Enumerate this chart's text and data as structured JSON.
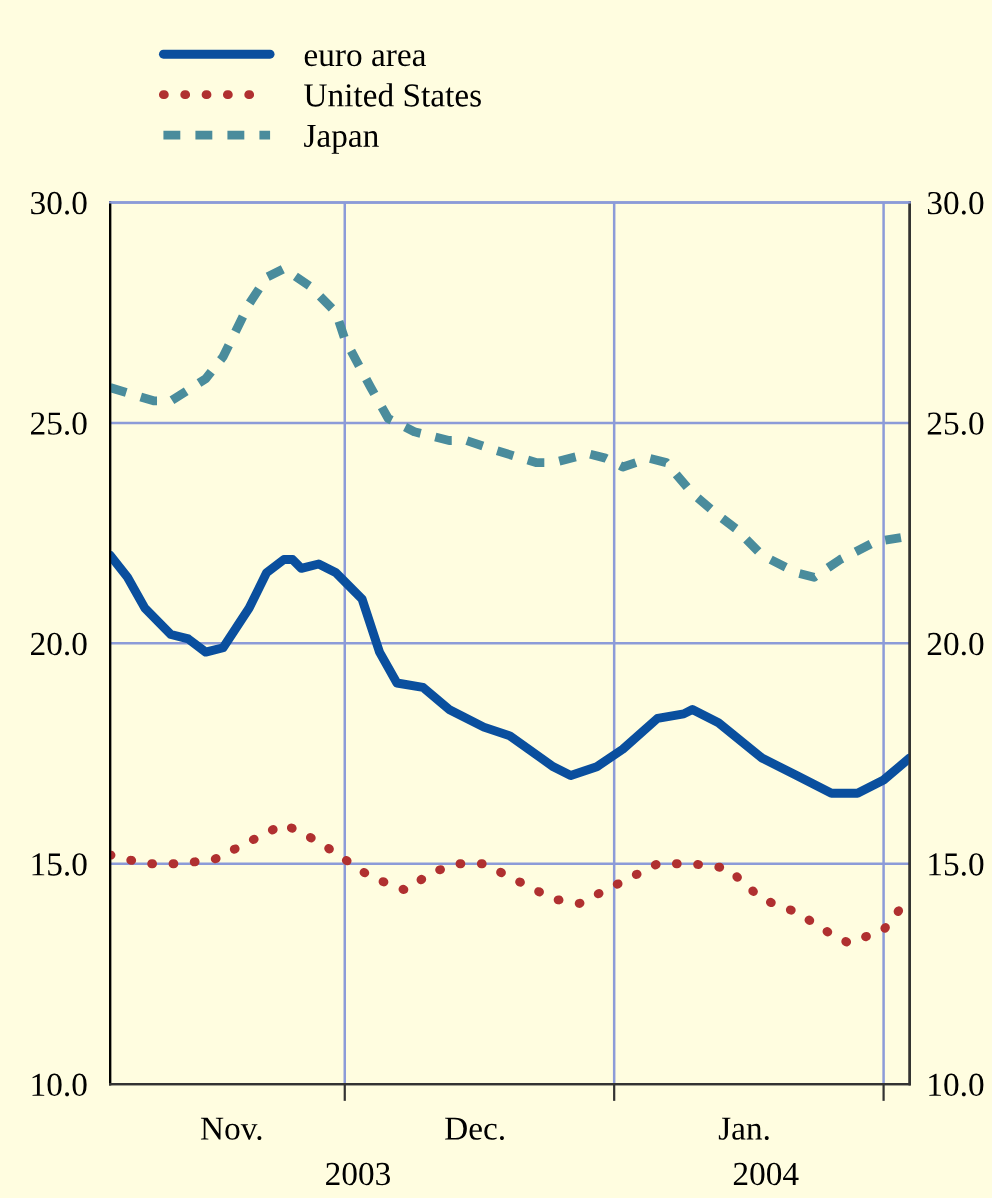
{
  "chart_data": {
    "type": "line",
    "series": [
      {
        "name": "euro area",
        "color": "#0a4f9e",
        "line_style": "solid",
        "x": [
          "2003-11-04",
          "2003-11-06",
          "2003-11-08",
          "2003-11-11",
          "2003-11-13",
          "2003-11-15",
          "2003-11-17",
          "2003-11-20",
          "2003-11-22",
          "2003-11-24",
          "2003-11-25",
          "2003-11-26",
          "2003-11-28",
          "2003-11-30",
          "2003-12-03",
          "2003-12-05",
          "2003-12-07",
          "2003-12-10",
          "2003-12-13",
          "2003-12-17",
          "2003-12-20",
          "2003-12-25",
          "2003-12-27",
          "2003-12-30",
          "2004-01-02",
          "2004-01-06",
          "2004-01-09",
          "2004-01-10",
          "2004-01-13",
          "2004-01-18",
          "2004-01-22",
          "2004-01-26",
          "2004-01-29",
          "2004-02-01",
          "2004-02-04"
        ],
        "values": [
          22.0,
          21.5,
          20.8,
          20.2,
          20.1,
          19.8,
          19.9,
          20.8,
          21.6,
          21.9,
          21.9,
          21.7,
          21.8,
          21.6,
          21.0,
          19.8,
          19.1,
          19.0,
          18.5,
          18.1,
          17.9,
          17.2,
          17.0,
          17.2,
          17.6,
          18.3,
          18.4,
          18.5,
          18.2,
          17.4,
          17.0,
          16.6,
          16.6,
          16.9,
          17.4
        ]
      },
      {
        "name": "United States",
        "color": "#b03030",
        "line_style": "dotted",
        "x": [
          "2003-11-04",
          "2003-11-08",
          "2003-11-12",
          "2003-11-16",
          "2003-11-21",
          "2003-11-24",
          "2003-11-28",
          "2003-12-01",
          "2003-12-04",
          "2003-12-08",
          "2003-12-11",
          "2003-12-14",
          "2003-12-17",
          "2003-12-20",
          "2003-12-25",
          "2003-12-28",
          "2004-01-01",
          "2004-01-06",
          "2004-01-10",
          "2004-01-14",
          "2004-01-18",
          "2004-01-22",
          "2004-01-26",
          "2004-01-28",
          "2004-02-01",
          "2004-02-03"
        ],
        "values": [
          15.2,
          15.0,
          15.0,
          15.1,
          15.6,
          15.9,
          15.5,
          15.1,
          14.7,
          14.4,
          14.8,
          15.0,
          15.0,
          14.7,
          14.2,
          14.1,
          14.5,
          15.0,
          15.0,
          14.9,
          14.2,
          13.9,
          13.4,
          13.2,
          13.5,
          14.0
        ]
      },
      {
        "name": "Japan",
        "color": "#4a8c9c",
        "line_style": "dashed",
        "x": [
          "2003-11-04",
          "2003-11-09",
          "2003-11-11",
          "2003-11-15",
          "2003-11-17",
          "2003-11-20",
          "2003-11-22",
          "2003-11-24",
          "2003-11-27",
          "2003-11-30",
          "2003-12-01",
          "2003-12-04",
          "2003-12-06",
          "2003-12-09",
          "2003-12-13",
          "2003-12-15",
          "2003-12-18",
          "2003-12-23",
          "2003-12-25",
          "2003-12-29",
          "2003-12-31",
          "2004-01-02",
          "2004-01-05",
          "2004-01-07",
          "2004-01-10",
          "2004-01-13",
          "2004-01-15",
          "2004-01-18",
          "2004-01-22",
          "2004-01-24",
          "2004-01-27",
          "2004-01-31",
          "2004-02-03"
        ],
        "values": [
          25.8,
          25.5,
          25.5,
          26.0,
          26.5,
          27.7,
          28.3,
          28.5,
          28.1,
          27.5,
          26.9,
          25.8,
          25.1,
          24.8,
          24.6,
          24.6,
          24.4,
          24.1,
          24.1,
          24.3,
          24.2,
          24.0,
          24.2,
          24.1,
          23.4,
          22.9,
          22.6,
          22.0,
          21.6,
          21.5,
          21.9,
          22.3,
          22.4
        ]
      }
    ],
    "xlim": [
      "2003-11-04",
      "2004-02-04"
    ],
    "xticks": [
      {
        "value": "2003-12-01",
        "label": null
      },
      {
        "value": "2004-01-01",
        "label": null
      },
      {
        "value": "2004-02-01",
        "label": null
      },
      {
        "value": "2003-11-18",
        "label": "Nov."
      },
      {
        "value": "2003-12-16",
        "label": "Dec."
      },
      {
        "value": "2004-01-16",
        "label": "Jan."
      }
    ],
    "ylim": [
      10,
      30
    ],
    "yticks": [
      {
        "value": 10,
        "label": "10.0"
      },
      {
        "value": 15,
        "label": "15.0"
      },
      {
        "value": 20,
        "label": "20.0"
      },
      {
        "value": 25,
        "label": "25.0"
      },
      {
        "value": 30,
        "label": "30.0"
      }
    ],
    "y2lim": [
      10,
      30
    ],
    "y2ticks": [
      {
        "value": 10,
        "label": "10.0"
      },
      {
        "value": 15,
        "label": "15.0"
      },
      {
        "value": 20,
        "label": "20.0"
      },
      {
        "value": 25,
        "label": "25.0"
      },
      {
        "value": 30,
        "label": "30.0"
      }
    ],
    "annotations": [
      "2003",
      "2004"
    ],
    "grid": true,
    "legend": "top left"
  }
}
